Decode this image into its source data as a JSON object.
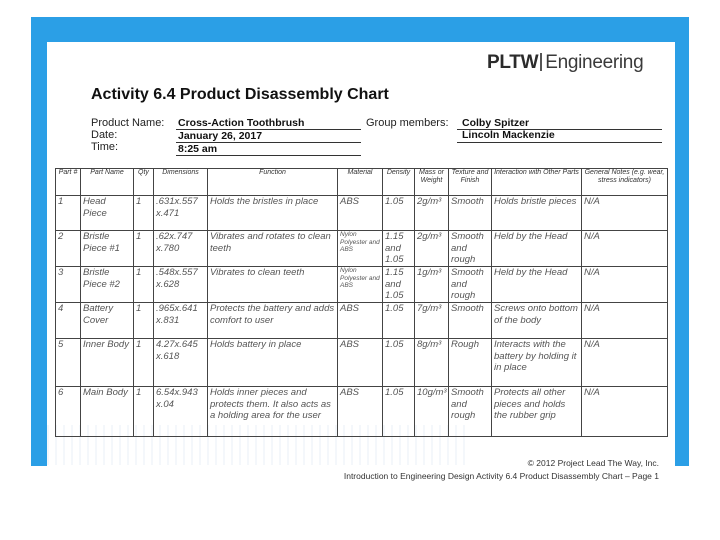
{
  "logo": {
    "brand": "PLTW",
    "suffix": "Engineering"
  },
  "title": "Activity 6.4 Product Disassembly Chart",
  "info": {
    "product_name_label": "Product Name:",
    "product_name": "Cross-Action Toothbrush",
    "date_label": "Date:",
    "date": "January 26, 2017",
    "time_label": "Time:",
    "time": "8:25 am",
    "group_label": "Group members:",
    "member1": "Colby Spitzer",
    "member2": "Lincoln Mackenzie"
  },
  "table": {
    "headers": [
      "Part #",
      "Part Name",
      "Qty",
      "Dimensions",
      "Function",
      "Material",
      "Density",
      "Mass or Weight",
      "Texture and Finish",
      "Interaction with Other Parts",
      "General Notes (e.g. wear, stress indicators)"
    ],
    "rows": [
      [
        "1",
        "Head Piece",
        "1",
        ".631x.557 x.471",
        "Holds the bristles in place",
        "ABS",
        "1.05",
        "2g/m³",
        "Smooth",
        "Holds bristle pieces",
        "N/A"
      ],
      [
        "2",
        "Bristle Piece #1",
        "1",
        ".62x.747 x.780",
        "Vibrates and rotates to clean teeth",
        "Nylon Polyester and ABS",
        "1.15 and 1.05",
        "2g/m³",
        "Smooth and rough",
        "Held by the Head",
        "N/A"
      ],
      [
        "3",
        "Bristle Piece #2",
        "1",
        ".548x.557 x.628",
        "Vibrates to clean teeth",
        "Nylon Polyester and ABS",
        "1.15 and 1.05",
        "1g/m³",
        "Smooth and rough",
        "Held by the Head",
        "N/A"
      ],
      [
        "4",
        "Battery Cover",
        "1",
        ".965x.641 x.831",
        "Protects the battery and adds comfort to user",
        "ABS",
        "1.05",
        "7g/m³",
        "Smooth",
        "Screws onto bottom of the body",
        "N/A"
      ],
      [
        "5",
        "Inner Body",
        "1",
        "4.27x.645 x.618",
        "Holds battery in place",
        "ABS",
        "1.05",
        "8g/m³",
        "Rough",
        "Interacts with the battery by holding it in place",
        "N/A"
      ],
      [
        "6",
        "Main Body",
        "1",
        "6.54x.943 x.04",
        "Holds inner pieces and protects them. It also acts as a holding area for the user",
        "ABS",
        "1.05",
        "10g/m³",
        "Smooth and rough",
        "Protects all other pieces and holds the rubber grip",
        "N/A"
      ]
    ]
  },
  "footer": {
    "copyright": "© 2012 Project Lead The Way, Inc.",
    "course": "Introduction to Engineering Design Activity 6.4 Product Disassembly Chart – Page 1"
  }
}
